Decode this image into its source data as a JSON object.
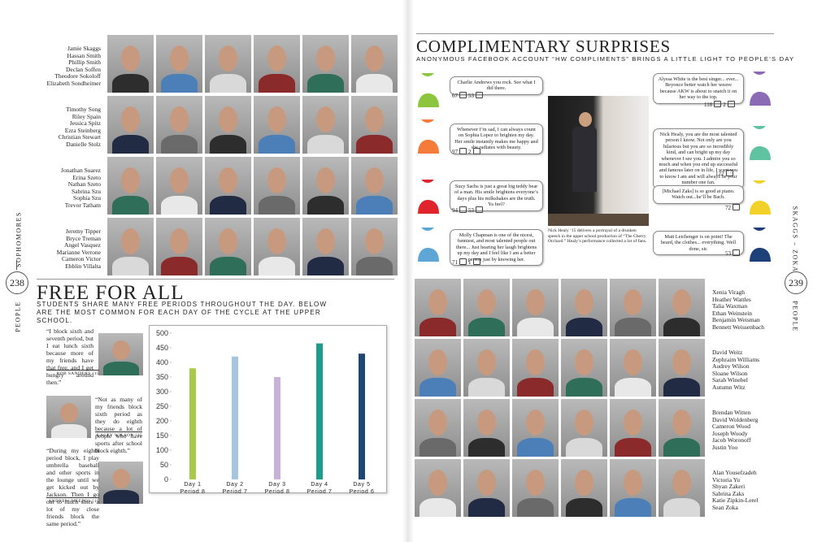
{
  "left_page": {
    "page_number": 238,
    "section": "PEOPLE",
    "class": "SOPHOMORES",
    "name_groups": [
      [
        "Jamie Skaggs",
        "Hassan Smith",
        "Phillip Smith",
        "Declan Soffen",
        "Theodore Sokoloff",
        "Elizabeth Sondheimer"
      ],
      [
        "Timothy Song",
        "Riley Spain",
        "Jessica Spitz",
        "Ezra Steinberg",
        "Christian Stewart",
        "Danielle Stolz"
      ],
      [
        "Jonathan Suarez",
        "Erina Szeto",
        "Nathan Szeto",
        "Sabrina Szu",
        "Sophia Szu",
        "Trevor Tatham"
      ],
      [
        "Jeremy Tipper",
        "Bryce Treman",
        "Angel Vasquez",
        "Marianne Verrone",
        "Cameron Victor",
        "Ebblin Villalta"
      ]
    ]
  },
  "free_for_all": {
    "title": "FREE FOR ALL",
    "subtitle": "STUDENTS SHARE MANY FREE PERIODS THROUGHOUT THE DAY. BELOW ARE THE MOST COMMON FOR EACH DAY OF THE CYCLE AT THE UPPER SCHOOL.",
    "quotes": [
      {
        "text": "“I block sixth and seventh period, but I eat lunch sixth because more of my friends have that free, and I get hungry around then.”",
        "author": "Rob Sanders ’15"
      },
      {
        "text": "“Not as many of my friends block sixth period as they do eighth because a lot of people who have sports after school block eighth.”",
        "author": "Kacey Wilson ’15"
      },
      {
        "text": "“During my eighth period block, I play umbrella baseball and other sports in the lounge until we get kicked out by Jackson. Then I go out to lunch since a lot of my close friends block the same period.”",
        "author": "Andrew Meepos ’15"
      }
    ]
  },
  "chart_data": {
    "type": "bar",
    "categories": [
      "Day 1 Period 8",
      "Day 2 Period 7",
      "Day 3 Period 8",
      "Day 4 Period 7",
      "Day 5 Period 6"
    ],
    "values": [
      380,
      420,
      350,
      465,
      430
    ],
    "colors": [
      "#a9c94b",
      "#a3c6de",
      "#c7b3d9",
      "#1f9d8c",
      "#1e4677"
    ],
    "ylim": [
      0,
      500
    ],
    "yticks": [
      0,
      50,
      100,
      150,
      200,
      250,
      300,
      350,
      400,
      450,
      500
    ],
    "grid": false
  },
  "complimentary_surprises": {
    "title": "COMPLIMENTARY SURPRISES",
    "subtitle": "ANONYMOUS FACEBOOK ACCOUNT “HW COMPLIMENTS” BRINGS A LITTLE LIGHT TO PEOPLE’S DAY",
    "posts": [
      {
        "text": "Charlie Andrews you rock. See what I did there.",
        "likes": 67,
        "comments": 53
      },
      {
        "text": "Whenever I’m sad, I can always count on Sophia Lopez to brighten my day. Her smile instantly makes me happy and she radiates with beauty.",
        "likes": 97,
        "comments": 2
      },
      {
        "text": "Suzy Sachs is just a great big teddy bear of a man. His smile brightens everyone’s days plus his milkshakes are the truth. Ya feel?",
        "likes": 94,
        "comments": 53
      },
      {
        "text": "Molly Chapman is one of the nicest, funniest, and most talented people out there... Just hearing her laugh brightens up my day and I feel like I am a better person just by knowing her.",
        "likes": 71,
        "comments": 1
      },
      {
        "text": "Alyssa White is the best singer... ever... Beyonce better watch her weave because AKW is about to snatch it on her way to the top.",
        "likes": 118,
        "comments": 2
      },
      {
        "text": "Nick Healy, you are the most talented person I know. Not only are you hilarious but you are so incredibly kind, and can bright up my day whenever I see you. I admire you so much and when you end up successful and famous later on in life, I want you to know I am and will always be your number one fan.",
        "likes": 122
      },
      {
        "text": "[Michael Zaks] is so good at piano. Watch out...he’ll be Bach.",
        "likes": 72
      },
      {
        "text": "Matt Leichenger is on point! The beard, the clothes... everything. Well done, sir.",
        "likes": 53
      }
    ],
    "caption": "Nick Healy ’15 delivers a portrayal of a drunken speech in the upper school production of “The Cherry Orchard.” Healy’s performance collected a lot of fans."
  },
  "right_page": {
    "page_number": 239,
    "section": "PEOPLE",
    "class": "SKAGGS – ZOKA",
    "name_groups": [
      [
        "Xenia Viragh",
        "Heather Wattles",
        "Talia Waxman",
        "Ethan Weinstein",
        "Benjamin Weisman",
        "Bennett Weissenbach"
      ],
      [
        "David Weitz",
        "Zephraim Williams",
        "Audrey Wilson",
        "Sloane Wilson",
        "Sarah Winebel",
        "Autumn Witz"
      ],
      [
        "Brendan Witten",
        "David Woldenberg",
        "Cameron Wood",
        "Joseph Woody",
        "Jacob Woronoff",
        "Justin Yoo"
      ],
      [
        "Alan Yousefzadeh",
        "Victoria Yu",
        "Shyan Zakeri",
        "Sabrina Zaks",
        "Katie Zipkin-Lerel",
        "Sean Zoka"
      ]
    ]
  }
}
